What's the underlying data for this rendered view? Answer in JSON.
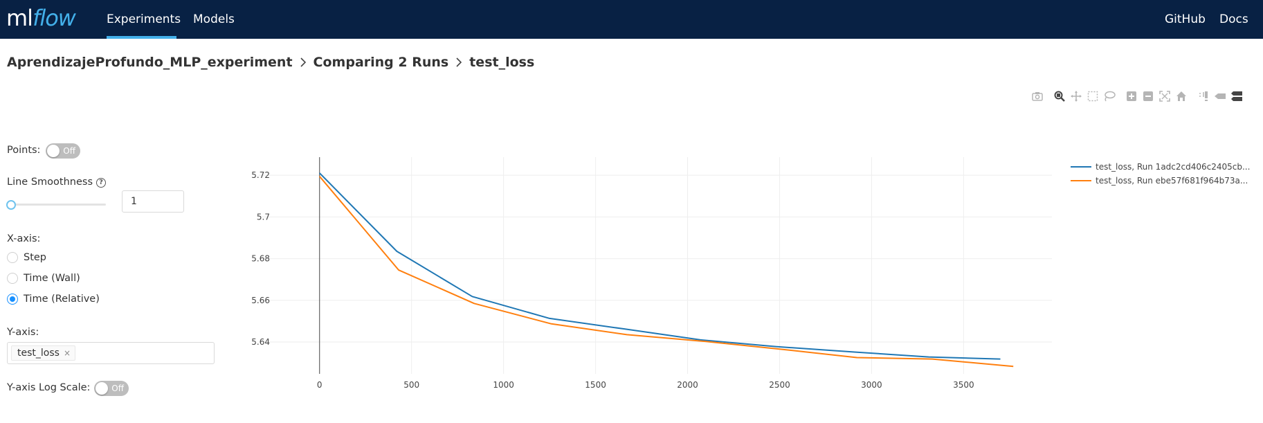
{
  "header": {
    "logo_ml": "ml",
    "logo_flow": "flow",
    "nav": [
      {
        "label": "Experiments",
        "active": true
      },
      {
        "label": "Models",
        "active": false
      }
    ],
    "right_links": [
      {
        "label": "GitHub"
      },
      {
        "label": "Docs"
      }
    ],
    "background_color": "#082144",
    "accent_color": "#43b0ea"
  },
  "breadcrumb": {
    "experiment": "AprendizajeProfundo_MLP_experiment",
    "comparison": "Comparing 2 Runs",
    "metric": "test_loss"
  },
  "modebar": {
    "icons": [
      "camera-icon",
      "zoom-icon",
      "pan-icon",
      "box-select-icon",
      "lasso-icon",
      "zoom-in-icon",
      "zoom-out-icon",
      "autoscale-icon",
      "reset-axes-icon",
      "spike-lines-icon",
      "hover-closest-icon",
      "hover-compare-icon"
    ]
  },
  "controls": {
    "points_label": "Points:",
    "points_toggle": "Off",
    "smoothness_label": "Line Smoothness",
    "smoothness_value": "1",
    "smoothness_slider_fraction": 0,
    "xaxis_label": "X-axis:",
    "xaxis_options": [
      {
        "label": "Step",
        "checked": false
      },
      {
        "label": "Time (Wall)",
        "checked": false
      },
      {
        "label": "Time (Relative)",
        "checked": true
      }
    ],
    "yaxis_label": "Y-axis:",
    "yaxis_tags": [
      "test_loss"
    ],
    "yaxis_tag_remove": "×",
    "log_scale_label": "Y-axis Log Scale:",
    "log_scale_toggle": "Off"
  },
  "chart_data": {
    "type": "line",
    "xlim": [
      -330,
      3980
    ],
    "ylim": [
      5.6247,
      5.7287
    ],
    "x_ticks": [
      0,
      500,
      1000,
      1500,
      2000,
      2500,
      3000,
      3500
    ],
    "y_ticks": [
      5.64,
      5.66,
      5.68,
      5.7,
      5.72
    ],
    "y_tick_labels": [
      "5.64",
      "5.66",
      "5.68",
      "5.7",
      "5.72"
    ],
    "grid": true,
    "legend_placement": "top-right",
    "series": [
      {
        "name": "test_loss, Run 1adc2cd406c2405cb...",
        "color": "#1f77b4",
        "x": [
          0,
          420,
          830,
          1250,
          1660,
          2070,
          2480,
          2900,
          3310,
          3700
        ],
        "y": [
          5.7211,
          5.6835,
          5.6618,
          5.6513,
          5.6462,
          5.641,
          5.6378,
          5.6352,
          5.6328,
          5.6318
        ]
      },
      {
        "name": "test_loss, Run ebe57f681f964b73a...",
        "color": "#ff7f0e",
        "x": [
          0,
          430,
          840,
          1260,
          1670,
          2090,
          2500,
          2920,
          3330,
          3770
        ],
        "y": [
          5.7195,
          5.6745,
          5.6585,
          5.6487,
          5.6435,
          5.6403,
          5.6366,
          5.6325,
          5.6318,
          5.6283
        ]
      }
    ]
  }
}
